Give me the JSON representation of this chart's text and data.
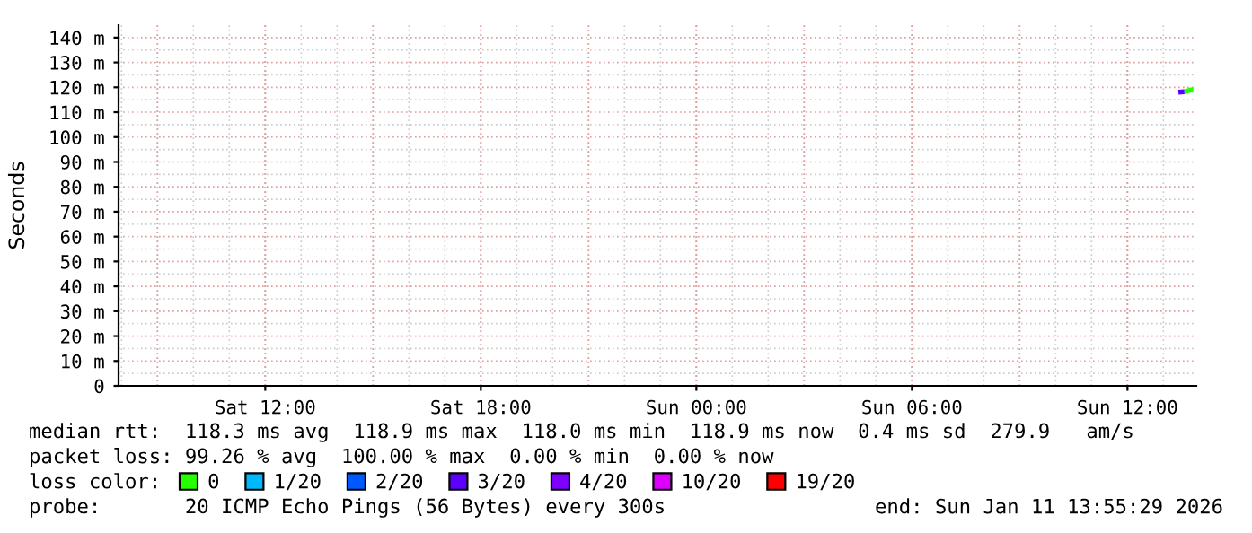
{
  "chart_data": {
    "type": "line",
    "ylabel": "Seconds",
    "legend_title": "loss color:",
    "x": [
      "2026-01-11T13:25",
      "2026-01-11T13:35",
      "2026-01-11T13:45",
      "2026-01-11T13:50"
    ],
    "series": [
      {
        "name": "0",
        "color": "#26ff00",
        "values": [
          null,
          118.2,
          118.9,
          118.9
        ]
      },
      {
        "name": "1/20",
        "color": "#00b8ff",
        "values": [
          null,
          null,
          null,
          null
        ]
      },
      {
        "name": "2/20",
        "color": "#0059ff",
        "values": [
          null,
          null,
          null,
          null
        ]
      },
      {
        "name": "3/20",
        "color": "#5e00ff",
        "values": [
          118.0,
          118.2,
          null,
          null
        ]
      },
      {
        "name": "4/20",
        "color": "#7e00ff",
        "values": [
          null,
          null,
          null,
          null
        ]
      },
      {
        "name": "10/20",
        "color": "#dd00ff",
        "values": [
          null,
          null,
          null,
          null
        ]
      },
      {
        "name": "19/20",
        "color": "#ff0000",
        "values": [
          null,
          null,
          null,
          null
        ]
      }
    ],
    "xlim": [
      "2026-01-10T07:55",
      "2026-01-11T13:55"
    ],
    "xticks": [
      {
        "value": "2026-01-10T12:00",
        "label": "Sat 12:00"
      },
      {
        "value": "2026-01-10T18:00",
        "label": "Sat 18:00"
      },
      {
        "value": "2026-01-11T00:00",
        "label": "Sun 00:00"
      },
      {
        "value": "2026-01-11T06:00",
        "label": "Sun 06:00"
      },
      {
        "value": "2026-01-11T12:00",
        "label": "Sun 12:00"
      }
    ],
    "ylim": [
      0,
      145
    ],
    "yticks": [
      0,
      {
        "value": 10,
        "label": "10 m"
      },
      {
        "value": 20,
        "label": "20 m"
      },
      {
        "value": 30,
        "label": "30 m"
      },
      {
        "value": 40,
        "label": "40 m"
      },
      {
        "value": 50,
        "label": "50 m"
      },
      {
        "value": 60,
        "label": "60 m"
      },
      {
        "value": 70,
        "label": "70 m"
      },
      {
        "value": 80,
        "label": "80 m"
      },
      {
        "value": 90,
        "label": "90 m"
      },
      {
        "value": 100,
        "label": "100 m"
      },
      {
        "value": 110,
        "label": "110 m"
      },
      {
        "value": 120,
        "label": "120 m"
      },
      {
        "value": 130,
        "label": "130 m"
      },
      {
        "value": 140,
        "label": "140 m"
      }
    ],
    "grid": true,
    "legend": "bottom",
    "annotations": [
      "median rtt:  118.3 ms avg  118.9 ms max  118.0 ms min  118.9 ms now  0.4 ms sd  279.9   am/s",
      "packet loss: 99.26 % avg  100.00 % max  0.00 % min  0.00 % now",
      "probe:       20 ICMP Echo Pings (56 Bytes) every 300s",
      "end: Sun Jan 11 13:55:29 2026"
    ]
  }
}
